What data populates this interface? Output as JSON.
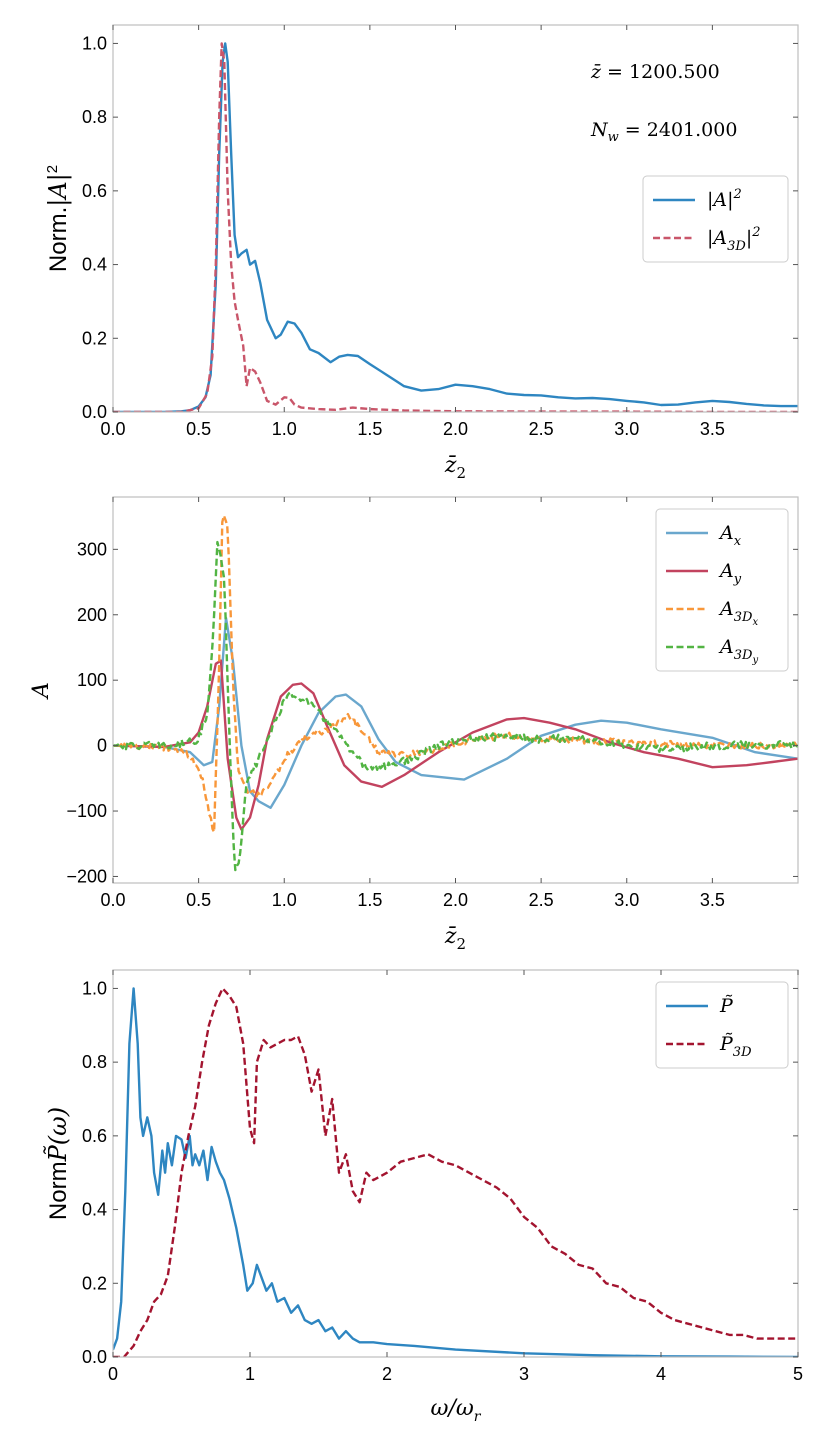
{
  "chart_data": [
    {
      "type": "line",
      "panel": "top",
      "xlabel": "z̄₂",
      "ylabel": "Norm.|A|²",
      "xlim": [
        0.0,
        4.0
      ],
      "ylim": [
        0.0,
        1.05
      ],
      "xticks": [
        "0.0",
        "0.5",
        "1.0",
        "1.5",
        "2.0",
        "2.5",
        "3.0",
        "3.5"
      ],
      "xtick_values": [
        0.0,
        0.5,
        1.0,
        1.5,
        2.0,
        2.5,
        3.0,
        3.5
      ],
      "yticks": [
        "0.0",
        "0.2",
        "0.4",
        "0.6",
        "0.8",
        "1.0"
      ],
      "ytick_values": [
        0.0,
        0.2,
        0.4,
        0.6,
        0.8,
        1.0
      ],
      "annotations": [
        "z̄ = 1200.500",
        "N_w = 2401.000"
      ],
      "legend_position": "right",
      "series": [
        {
          "name": "|A|²",
          "color": "#2e86c1",
          "dash": "solid",
          "x": [
            0,
            0.3,
            0.4,
            0.45,
            0.5,
            0.54,
            0.57,
            0.6,
            0.62,
            0.64,
            0.655,
            0.67,
            0.69,
            0.71,
            0.73,
            0.75,
            0.78,
            0.8,
            0.83,
            0.86,
            0.9,
            0.95,
            0.98,
            1.02,
            1.06,
            1.1,
            1.15,
            1.2,
            1.27,
            1.32,
            1.37,
            1.43,
            1.5,
            1.6,
            1.7,
            1.8,
            1.9,
            2.0,
            2.1,
            2.2,
            2.3,
            2.4,
            2.5,
            2.6,
            2.7,
            2.8,
            2.9,
            3.0,
            3.1,
            3.2,
            3.3,
            3.4,
            3.5,
            3.6,
            3.7,
            3.8,
            3.9,
            4.0
          ],
          "values": [
            0,
            0.0,
            0.002,
            0.005,
            0.015,
            0.04,
            0.1,
            0.35,
            0.7,
            0.95,
            1.0,
            0.95,
            0.7,
            0.48,
            0.42,
            0.43,
            0.44,
            0.4,
            0.41,
            0.35,
            0.25,
            0.2,
            0.21,
            0.245,
            0.24,
            0.215,
            0.17,
            0.16,
            0.135,
            0.15,
            0.155,
            0.152,
            0.13,
            0.1,
            0.07,
            0.058,
            0.062,
            0.074,
            0.07,
            0.062,
            0.05,
            0.046,
            0.045,
            0.04,
            0.037,
            0.038,
            0.035,
            0.03,
            0.026,
            0.019,
            0.02,
            0.026,
            0.03,
            0.027,
            0.022,
            0.018,
            0.016,
            0.016
          ]
        },
        {
          "name": "|A_3D|²",
          "color": "#c9566a",
          "dash": "dashed",
          "x": [
            0,
            0.4,
            0.5,
            0.55,
            0.58,
            0.6,
            0.62,
            0.635,
            0.65,
            0.67,
            0.69,
            0.71,
            0.73,
            0.76,
            0.78,
            0.8,
            0.83,
            0.86,
            0.9,
            0.95,
            1.0,
            1.03,
            1.06,
            1.1,
            1.2,
            1.3,
            1.4,
            1.5,
            1.7,
            2.0,
            2.5,
            3.0,
            3.5,
            4.0
          ],
          "values": [
            0,
            0.0,
            0.01,
            0.05,
            0.15,
            0.4,
            0.8,
            1.0,
            0.95,
            0.6,
            0.4,
            0.3,
            0.25,
            0.18,
            0.07,
            0.12,
            0.11,
            0.08,
            0.03,
            0.02,
            0.04,
            0.038,
            0.02,
            0.012,
            0.008,
            0.006,
            0.012,
            0.008,
            0.004,
            0.002,
            0.001,
            0.001,
            0.0,
            0.0
          ]
        }
      ]
    },
    {
      "type": "line",
      "panel": "middle",
      "xlabel": "z̄₂",
      "ylabel": "A",
      "xlim": [
        0.0,
        4.0
      ],
      "ylim": [
        -210,
        380
      ],
      "xticks": [
        "0.0",
        "0.5",
        "1.0",
        "1.5",
        "2.0",
        "2.5",
        "3.0",
        "3.5"
      ],
      "xtick_values": [
        0.0,
        0.5,
        1.0,
        1.5,
        2.0,
        2.5,
        3.0,
        3.5
      ],
      "yticks": [
        "−200",
        "−100",
        "0",
        "100",
        "200",
        "300"
      ],
      "ytick_values": [
        -200,
        -100,
        0,
        100,
        200,
        300
      ],
      "legend_position": "top-right",
      "series": [
        {
          "name": "A_x",
          "color": "#6aa7cd",
          "dash": "solid",
          "noise": 0,
          "x": [
            0,
            0.3,
            0.45,
            0.53,
            0.58,
            0.62,
            0.66,
            0.7,
            0.75,
            0.8,
            0.85,
            0.92,
            1.0,
            1.1,
            1.2,
            1.3,
            1.36,
            1.45,
            1.55,
            1.65,
            1.8,
            2.05,
            2.3,
            2.5,
            2.7,
            2.85,
            3.0,
            3.2,
            3.5,
            3.75,
            4.0
          ],
          "values": [
            0,
            -2,
            -10,
            -30,
            -25,
            60,
            195,
            130,
            0,
            -70,
            -85,
            -95,
            -60,
            0,
            50,
            75,
            78,
            60,
            10,
            -25,
            -45,
            -52,
            -20,
            15,
            32,
            38,
            35,
            25,
            12,
            -10,
            -20
          ]
        },
        {
          "name": "A_y",
          "color": "#c2435f",
          "dash": "solid",
          "noise": 0,
          "x": [
            0,
            0.3,
            0.45,
            0.5,
            0.55,
            0.6,
            0.63,
            0.67,
            0.72,
            0.75,
            0.8,
            0.85,
            0.9,
            0.98,
            1.05,
            1.1,
            1.17,
            1.25,
            1.35,
            1.45,
            1.57,
            1.7,
            1.9,
            2.1,
            2.3,
            2.4,
            2.55,
            2.7,
            2.9,
            3.1,
            3.3,
            3.5,
            3.7,
            3.85,
            4.0
          ],
          "values": [
            0,
            -2,
            5,
            20,
            60,
            125,
            130,
            -20,
            -110,
            -128,
            -110,
            -60,
            10,
            75,
            93,
            95,
            80,
            30,
            -30,
            -55,
            -63,
            -45,
            -10,
            20,
            40,
            42,
            35,
            25,
            5,
            -10,
            -20,
            -33,
            -30,
            -25,
            -20
          ]
        },
        {
          "name": "A_3D_x",
          "color": "#f8973a",
          "dash": "dashed",
          "noise": 5,
          "x": [
            0,
            0.35,
            0.45,
            0.52,
            0.56,
            0.59,
            0.62,
            0.64,
            0.67,
            0.7,
            0.73,
            0.78,
            0.85,
            0.92,
            1.0,
            1.1,
            1.2,
            1.3,
            1.37,
            1.45,
            1.55,
            1.7,
            1.9,
            2.1,
            2.3,
            2.5,
            3.0,
            3.5,
            4.0
          ],
          "values": [
            0,
            -3,
            -15,
            -50,
            -100,
            -135,
            120,
            360,
            330,
            100,
            -40,
            -70,
            -75,
            -60,
            -20,
            10,
            20,
            30,
            45,
            25,
            -10,
            -15,
            -5,
            10,
            15,
            10,
            5,
            0,
            0
          ]
        },
        {
          "name": "A_3D_y",
          "color": "#52b443",
          "dash": "dashed",
          "noise": 6,
          "x": [
            0,
            0.35,
            0.5,
            0.55,
            0.58,
            0.61,
            0.65,
            0.68,
            0.71,
            0.74,
            0.78,
            0.85,
            0.92,
            1.0,
            1.05,
            1.12,
            1.2,
            1.3,
            1.4,
            1.5,
            1.6,
            1.75,
            1.9,
            2.1,
            2.3,
            2.5,
            2.7,
            3.0,
            3.2,
            3.5,
            4.0
          ],
          "values": [
            0,
            0,
            10,
            50,
            150,
            310,
            260,
            10,
            -190,
            -170,
            -60,
            -20,
            20,
            70,
            78,
            72,
            50,
            25,
            -15,
            -35,
            -30,
            -20,
            0,
            10,
            15,
            10,
            12,
            0,
            -5,
            0,
            2
          ]
        }
      ]
    },
    {
      "type": "line",
      "panel": "bottom",
      "xlabel": "ω/ω_r",
      "ylabel": "Norm P̃(ω)",
      "xlim": [
        0,
        5
      ],
      "ylim": [
        0.0,
        1.05
      ],
      "xticks": [
        "0",
        "1",
        "2",
        "3",
        "4",
        "5"
      ],
      "xtick_values": [
        0,
        1,
        2,
        3,
        4,
        5
      ],
      "yticks": [
        "0.0",
        "0.2",
        "0.4",
        "0.6",
        "0.8",
        "1.0"
      ],
      "ytick_values": [
        0.0,
        0.2,
        0.4,
        0.6,
        0.8,
        1.0
      ],
      "legend_position": "top-right",
      "series": [
        {
          "name": "P̃",
          "color": "#2e86c1",
          "dash": "solid",
          "x": [
            0,
            0.03,
            0.06,
            0.09,
            0.12,
            0.15,
            0.18,
            0.2,
            0.22,
            0.25,
            0.28,
            0.3,
            0.33,
            0.36,
            0.38,
            0.4,
            0.43,
            0.46,
            0.5,
            0.53,
            0.56,
            0.58,
            0.6,
            0.63,
            0.66,
            0.69,
            0.72,
            0.75,
            0.78,
            0.81,
            0.85,
            0.9,
            0.95,
            0.98,
            1.02,
            1.05,
            1.08,
            1.12,
            1.16,
            1.2,
            1.25,
            1.3,
            1.35,
            1.4,
            1.45,
            1.5,
            1.55,
            1.6,
            1.65,
            1.7,
            1.75,
            1.8,
            1.9,
            2.0,
            2.2,
            2.5,
            3.0,
            3.5,
            4.0,
            4.5,
            5.0
          ],
          "values": [
            0.02,
            0.05,
            0.15,
            0.45,
            0.85,
            1.0,
            0.85,
            0.65,
            0.6,
            0.65,
            0.6,
            0.5,
            0.44,
            0.56,
            0.5,
            0.58,
            0.52,
            0.6,
            0.59,
            0.54,
            0.6,
            0.52,
            0.55,
            0.52,
            0.56,
            0.48,
            0.57,
            0.53,
            0.5,
            0.48,
            0.43,
            0.35,
            0.25,
            0.18,
            0.2,
            0.25,
            0.22,
            0.18,
            0.2,
            0.15,
            0.16,
            0.12,
            0.14,
            0.1,
            0.09,
            0.1,
            0.07,
            0.08,
            0.05,
            0.07,
            0.05,
            0.04,
            0.04,
            0.035,
            0.03,
            0.02,
            0.01,
            0.005,
            0.002,
            0.001,
            0.0
          ]
        },
        {
          "name": "P̃_3D",
          "color": "#a3142f",
          "dash": "dashed",
          "x": [
            0,
            0.08,
            0.15,
            0.2,
            0.25,
            0.3,
            0.35,
            0.4,
            0.45,
            0.5,
            0.55,
            0.6,
            0.65,
            0.7,
            0.75,
            0.8,
            0.85,
            0.9,
            0.95,
            1.0,
            1.03,
            1.05,
            1.1,
            1.15,
            1.2,
            1.25,
            1.3,
            1.35,
            1.4,
            1.45,
            1.5,
            1.55,
            1.6,
            1.65,
            1.7,
            1.75,
            1.8,
            1.85,
            1.9,
            2.0,
            2.1,
            2.2,
            2.3,
            2.4,
            2.5,
            2.6,
            2.7,
            2.8,
            2.9,
            3.0,
            3.1,
            3.2,
            3.3,
            3.4,
            3.5,
            3.6,
            3.7,
            3.8,
            3.9,
            4.0,
            4.1,
            4.2,
            4.3,
            4.4,
            4.5,
            4.6,
            4.7,
            4.8,
            4.9,
            5.0
          ],
          "values": [
            0.0,
            0.0,
            0.03,
            0.07,
            0.1,
            0.15,
            0.17,
            0.22,
            0.35,
            0.5,
            0.6,
            0.68,
            0.8,
            0.9,
            0.96,
            1.0,
            0.98,
            0.95,
            0.85,
            0.62,
            0.58,
            0.8,
            0.86,
            0.84,
            0.85,
            0.86,
            0.86,
            0.87,
            0.82,
            0.72,
            0.78,
            0.6,
            0.7,
            0.5,
            0.55,
            0.45,
            0.42,
            0.5,
            0.48,
            0.5,
            0.53,
            0.54,
            0.55,
            0.53,
            0.52,
            0.5,
            0.48,
            0.46,
            0.43,
            0.38,
            0.35,
            0.3,
            0.28,
            0.25,
            0.24,
            0.2,
            0.19,
            0.16,
            0.15,
            0.12,
            0.1,
            0.09,
            0.08,
            0.07,
            0.06,
            0.06,
            0.05,
            0.05,
            0.05,
            0.05
          ]
        }
      ]
    }
  ]
}
